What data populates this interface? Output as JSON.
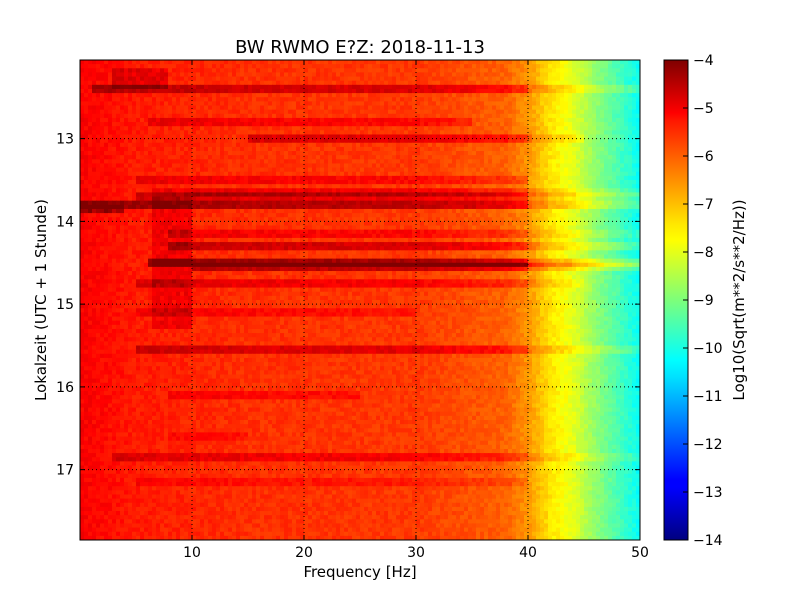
{
  "chart_data": {
    "type": "heatmap",
    "title": "BW RWMO E?Z: 2018-11-13",
    "xlabel": "Frequency [Hz]",
    "ylabel": "Lokalzeit (UTC + 1 Stunde)",
    "xlim": [
      0,
      50
    ],
    "ylim": [
      12.05,
      17.85
    ],
    "y_inverted": true,
    "grid": true,
    "x_ticks": [
      10,
      20,
      30,
      40,
      50
    ],
    "y_ticks": [
      13,
      14,
      15,
      16,
      17
    ],
    "colorbar": {
      "label": "Log10(Sqrt(m**2/s**2/Hz))",
      "range": [
        -14,
        -4
      ],
      "ticks": [
        -4,
        -5,
        -6,
        -7,
        -8,
        -9,
        -10,
        -11,
        -12,
        -13,
        -14
      ],
      "colormap": "jet"
    },
    "z_profile": {
      "description_freq_hz": [
        0,
        5,
        15,
        30,
        38,
        40,
        42,
        44,
        46,
        48,
        50
      ],
      "base_log10": [
        -5.2,
        -5.5,
        -5.7,
        -5.8,
        -6.2,
        -6.7,
        -7.5,
        -8.0,
        -8.8,
        -9.5,
        -10.2
      ]
    },
    "bands": [
      {
        "time": 12.4,
        "f0": 1,
        "f1": 50,
        "delta": 0.9
      },
      {
        "time": 12.8,
        "f0": 6,
        "f1": 35,
        "delta": 0.5
      },
      {
        "time": 13.0,
        "f0": 15,
        "f1": 45,
        "delta": 0.8
      },
      {
        "time": 13.5,
        "f0": 5,
        "f1": 40,
        "delta": 0.5
      },
      {
        "time": 13.65,
        "f0": 10,
        "f1": 50,
        "delta": 0.6
      },
      {
        "time": 13.72,
        "f0": 5,
        "f1": 50,
        "delta": 0.7
      },
      {
        "time": 13.82,
        "f0": 0,
        "f1": 50,
        "delta": 1.2
      },
      {
        "time": 14.15,
        "f0": 8,
        "f1": 50,
        "delta": 0.5
      },
      {
        "time": 14.3,
        "f0": 8,
        "f1": 50,
        "delta": 0.9
      },
      {
        "time": 14.48,
        "f0": 6,
        "f1": 50,
        "delta": 1.4
      },
      {
        "time": 14.55,
        "f0": 10,
        "f1": 50,
        "delta": 1.1
      },
      {
        "time": 14.75,
        "f0": 5,
        "f1": 45,
        "delta": 0.6
      },
      {
        "time": 15.1,
        "f0": 5,
        "f1": 30,
        "delta": 0.4
      },
      {
        "time": 15.55,
        "f0": 5,
        "f1": 50,
        "delta": 0.8
      },
      {
        "time": 16.12,
        "f0": 8,
        "f1": 25,
        "delta": 0.4
      },
      {
        "time": 16.6,
        "f0": 8,
        "f1": 15,
        "delta": 0.3
      },
      {
        "time": 16.85,
        "f0": 3,
        "f1": 50,
        "delta": 0.6
      },
      {
        "time": 17.15,
        "f0": 5,
        "f1": 40,
        "delta": 0.3
      }
    ],
    "blocks": [
      {
        "t0": 12.15,
        "t1": 12.4,
        "f0": 3,
        "f1": 8,
        "delta": 0.6
      },
      {
        "t0": 13.6,
        "t1": 15.3,
        "f0": 6.5,
        "f1": 10,
        "delta": 0.5
      },
      {
        "t0": 13.78,
        "t1": 13.9,
        "f0": 0,
        "f1": 4,
        "delta": 1.3
      }
    ]
  }
}
